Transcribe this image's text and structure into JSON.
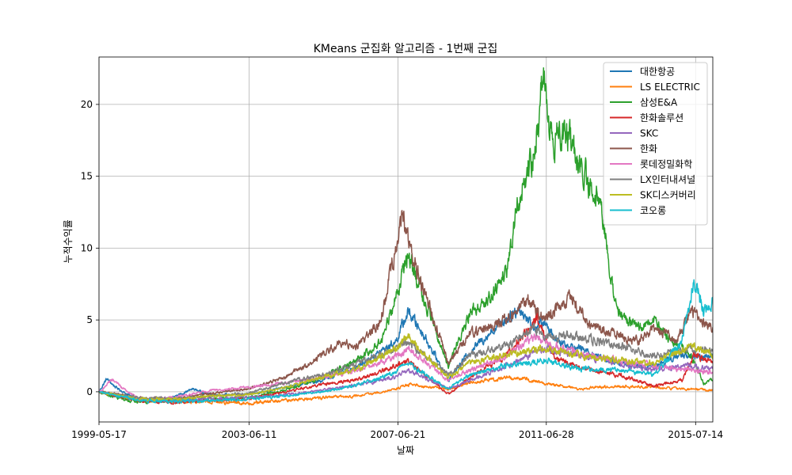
{
  "chart_data": {
    "type": "line",
    "title": "KMeans 군집화 알고리즘 - 1번째 군집",
    "xlabel": "날짜",
    "ylabel": "누적수익률",
    "x_range": [
      "1999-05-17",
      "2015-12-31"
    ],
    "ylim": [
      -2.1,
      23.3
    ],
    "x_ticks": [
      "1999-05-17",
      "2003-06-11",
      "2007-06-21",
      "2011-06-28",
      "2015-07-14"
    ],
    "y_ticks": [
      0,
      5,
      10,
      15,
      20
    ],
    "grid": true,
    "legend_position": "upper right",
    "series": [
      {
        "name": "대한항공",
        "color": "#1f77b4",
        "points": [
          [
            "1999-05-17",
            0
          ],
          [
            "1999-08-01",
            0.9
          ],
          [
            "1999-11-01",
            0.3
          ],
          [
            "2000-06-01",
            -0.6
          ],
          [
            "2001-03-01",
            -0.6
          ],
          [
            "2001-12-01",
            0.2
          ],
          [
            "2002-06-01",
            -0.2
          ],
          [
            "2003-06-01",
            -0.2
          ],
          [
            "2004-06-01",
            0.3
          ],
          [
            "2005-06-01",
            0.8
          ],
          [
            "2006-06-01",
            1.8
          ],
          [
            "2007-06-01",
            3.5
          ],
          [
            "2007-10-01",
            5.6
          ],
          [
            "2008-03-01",
            4.0
          ],
          [
            "2008-11-01",
            0.8
          ],
          [
            "2009-06-01",
            2.8
          ],
          [
            "2010-03-01",
            4.6
          ],
          [
            "2010-10-01",
            5.8
          ],
          [
            "2011-03-01",
            4.5
          ],
          [
            "2011-06-01",
            4.8
          ],
          [
            "2011-11-01",
            3.5
          ],
          [
            "2012-06-01",
            3.0
          ],
          [
            "2013-03-01",
            2.2
          ],
          [
            "2013-10-01",
            1.8
          ],
          [
            "2014-06-01",
            1.8
          ],
          [
            "2015-03-01",
            2.6
          ],
          [
            "2015-06-01",
            2.4
          ],
          [
            "2015-12-31",
            2.6
          ]
        ]
      },
      {
        "name": "LS ELECTRIC",
        "color": "#ff7f0e",
        "points": [
          [
            "1999-05-17",
            0
          ],
          [
            "2000-06-01",
            -0.6
          ],
          [
            "2001-06-01",
            -0.7
          ],
          [
            "2002-06-01",
            -0.7
          ],
          [
            "2003-06-01",
            -0.8
          ],
          [
            "2004-06-01",
            -0.6
          ],
          [
            "2005-06-01",
            -0.4
          ],
          [
            "2006-06-01",
            -0.3
          ],
          [
            "2007-06-01",
            0.2
          ],
          [
            "2007-10-01",
            0.5
          ],
          [
            "2008-11-01",
            0.2
          ],
          [
            "2009-06-01",
            0.6
          ],
          [
            "2010-06-01",
            1.0
          ],
          [
            "2010-12-01",
            0.9
          ],
          [
            "2011-06-01",
            0.6
          ],
          [
            "2012-06-01",
            0.2
          ],
          [
            "2013-06-01",
            0.4
          ],
          [
            "2014-06-01",
            0.3
          ],
          [
            "2015-06-01",
            0.2
          ],
          [
            "2015-12-31",
            0.1
          ]
        ]
      },
      {
        "name": "삼성E&A",
        "color": "#2ca02c",
        "points": [
          [
            "1999-05-17",
            0
          ],
          [
            "1999-09-01",
            -0.3
          ],
          [
            "2000-06-01",
            -0.7
          ],
          [
            "2001-06-01",
            -0.6
          ],
          [
            "2002-06-01",
            -0.5
          ],
          [
            "2003-06-01",
            -0.4
          ],
          [
            "2004-06-01",
            0.1
          ],
          [
            "2005-06-01",
            1.0
          ],
          [
            "2006-06-01",
            2.3
          ],
          [
            "2007-01-01",
            3.5
          ],
          [
            "2007-06-01",
            6.5
          ],
          [
            "2007-10-01",
            9.7
          ],
          [
            "2008-03-01",
            6.5
          ],
          [
            "2008-11-01",
            1.8
          ],
          [
            "2009-06-01",
            5.5
          ],
          [
            "2009-12-01",
            6.5
          ],
          [
            "2010-06-01",
            8.5
          ],
          [
            "2010-10-01",
            13.5
          ],
          [
            "2011-03-01",
            17.0
          ],
          [
            "2011-06-01",
            21.8
          ],
          [
            "2011-09-01",
            17.0
          ],
          [
            "2012-01-01",
            18.5
          ],
          [
            "2012-06-01",
            15.5
          ],
          [
            "2013-01-01",
            13.0
          ],
          [
            "2013-03-01",
            9.0
          ],
          [
            "2013-06-01",
            5.5
          ],
          [
            "2014-01-01",
            4.5
          ],
          [
            "2014-06-01",
            5.0
          ],
          [
            "2014-12-01",
            3.5
          ],
          [
            "2015-03-01",
            3.2
          ],
          [
            "2015-06-01",
            2.5
          ],
          [
            "2015-10-01",
            0.6
          ],
          [
            "2015-12-31",
            0.8
          ]
        ]
      },
      {
        "name": "한화솔루션",
        "color": "#d62728",
        "points": [
          [
            "1999-05-17",
            0
          ],
          [
            "2000-06-01",
            -0.6
          ],
          [
            "2001-06-01",
            -0.7
          ],
          [
            "2002-06-01",
            -0.6
          ],
          [
            "2003-06-01",
            -0.5
          ],
          [
            "2004-06-01",
            0.0
          ],
          [
            "2005-06-01",
            0.5
          ],
          [
            "2006-06-01",
            0.9
          ],
          [
            "2007-06-01",
            1.8
          ],
          [
            "2007-10-01",
            2.2
          ],
          [
            "2008-11-01",
            -0.2
          ],
          [
            "2009-06-01",
            1.0
          ],
          [
            "2010-06-01",
            2.5
          ],
          [
            "2011-04-01",
            5.2
          ],
          [
            "2011-09-01",
            2.5
          ],
          [
            "2012-06-01",
            1.6
          ],
          [
            "2013-06-01",
            1.2
          ],
          [
            "2014-06-01",
            0.4
          ],
          [
            "2015-03-01",
            0.8
          ],
          [
            "2015-07-01",
            2.6
          ],
          [
            "2015-12-31",
            2.0
          ]
        ]
      },
      {
        "name": "SKC",
        "color": "#9467bd",
        "points": [
          [
            "1999-05-17",
            0
          ],
          [
            "2000-06-01",
            -0.5
          ],
          [
            "2001-06-01",
            -0.6
          ],
          [
            "2002-06-01",
            -0.5
          ],
          [
            "2003-06-01",
            -0.4
          ],
          [
            "2004-06-01",
            -0.2
          ],
          [
            "2005-06-01",
            0.1
          ],
          [
            "2006-06-01",
            0.5
          ],
          [
            "2007-06-01",
            1.0
          ],
          [
            "2007-10-01",
            1.5
          ],
          [
            "2008-11-01",
            0.2
          ],
          [
            "2009-06-01",
            0.8
          ],
          [
            "2010-06-01",
            1.8
          ],
          [
            "2011-06-01",
            3.0
          ],
          [
            "2012-06-01",
            2.5
          ],
          [
            "2013-06-01",
            2.0
          ],
          [
            "2014-06-01",
            1.5
          ],
          [
            "2015-06-01",
            1.8
          ],
          [
            "2015-12-31",
            1.6
          ]
        ]
      },
      {
        "name": "한화",
        "color": "#8c564b",
        "points": [
          [
            "1999-05-17",
            0
          ],
          [
            "2000-06-01",
            -0.4
          ],
          [
            "2001-06-01",
            -0.5
          ],
          [
            "2002-06-01",
            -0.1
          ],
          [
            "2003-06-01",
            0.2
          ],
          [
            "2004-06-01",
            1.0
          ],
          [
            "2005-06-01",
            2.5
          ],
          [
            "2005-12-01",
            3.5
          ],
          [
            "2006-06-01",
            3.2
          ],
          [
            "2007-01-01",
            5.0
          ],
          [
            "2007-06-01",
            10.0
          ],
          [
            "2007-08-01",
            12.1
          ],
          [
            "2008-03-01",
            7.0
          ],
          [
            "2008-11-01",
            2.0
          ],
          [
            "2009-06-01",
            4.0
          ],
          [
            "2010-06-01",
            5.0
          ],
          [
            "2011-01-01",
            6.5
          ],
          [
            "2011-06-01",
            5.0
          ],
          [
            "2012-03-01",
            6.5
          ],
          [
            "2012-09-01",
            4.5
          ],
          [
            "2013-06-01",
            4.0
          ],
          [
            "2014-01-01",
            3.5
          ],
          [
            "2014-06-01",
            4.5
          ],
          [
            "2015-01-01",
            3.5
          ],
          [
            "2015-06-01",
            5.5
          ],
          [
            "2015-12-31",
            4.5
          ]
        ]
      },
      {
        "name": "롯데정밀화학",
        "color": "#e377c2",
        "points": [
          [
            "1999-05-17",
            0
          ],
          [
            "1999-10-01",
            0.8
          ],
          [
            "2000-06-01",
            -0.5
          ],
          [
            "2001-06-01",
            -0.4
          ],
          [
            "2002-06-01",
            0.1
          ],
          [
            "2003-06-01",
            0.3
          ],
          [
            "2004-06-01",
            0.6
          ],
          [
            "2005-06-01",
            1.0
          ],
          [
            "2006-06-01",
            1.5
          ],
          [
            "2007-06-01",
            2.5
          ],
          [
            "2007-10-01",
            3.0
          ],
          [
            "2008-11-01",
            0.8
          ],
          [
            "2009-06-01",
            1.5
          ],
          [
            "2010-06-01",
            2.5
          ],
          [
            "2011-03-01",
            3.8
          ],
          [
            "2011-06-01",
            3.5
          ],
          [
            "2012-06-01",
            2.6
          ],
          [
            "2013-06-01",
            2.2
          ],
          [
            "2014-06-01",
            1.8
          ],
          [
            "2015-06-01",
            1.5
          ],
          [
            "2015-12-31",
            1.3
          ]
        ]
      },
      {
        "name": "LX인터내셔널",
        "color": "#7f7f7f",
        "points": [
          [
            "1999-05-17",
            0
          ],
          [
            "2000-06-01",
            -0.4
          ],
          [
            "2001-06-01",
            -0.5
          ],
          [
            "2002-06-01",
            -0.3
          ],
          [
            "2003-06-01",
            -0.1
          ],
          [
            "2004-06-01",
            0.6
          ],
          [
            "2005-06-01",
            1.2
          ],
          [
            "2006-06-01",
            2.0
          ],
          [
            "2007-06-01",
            3.0
          ],
          [
            "2007-10-01",
            3.5
          ],
          [
            "2008-11-01",
            1.2
          ],
          [
            "2009-06-01",
            2.5
          ],
          [
            "2010-06-01",
            3.2
          ],
          [
            "2011-03-01",
            4.5
          ],
          [
            "2011-06-01",
            4.0
          ],
          [
            "2012-06-01",
            3.8
          ],
          [
            "2013-06-01",
            3.2
          ],
          [
            "2014-06-01",
            2.5
          ],
          [
            "2015-06-01",
            3.0
          ],
          [
            "2015-12-31",
            2.8
          ]
        ]
      },
      {
        "name": "SK디스커버리",
        "color": "#bcbd22",
        "points": [
          [
            "1999-05-17",
            0
          ],
          [
            "2000-06-01",
            -0.5
          ],
          [
            "2001-06-01",
            -0.5
          ],
          [
            "2002-06-01",
            -0.3
          ],
          [
            "2003-06-01",
            -0.2
          ],
          [
            "2004-06-01",
            0.3
          ],
          [
            "2005-06-01",
            1.0
          ],
          [
            "2006-06-01",
            1.6
          ],
          [
            "2007-06-01",
            3.0
          ],
          [
            "2007-10-01",
            3.8
          ],
          [
            "2008-11-01",
            1.0
          ],
          [
            "2009-06-01",
            2.0
          ],
          [
            "2010-06-01",
            2.6
          ],
          [
            "2011-06-01",
            3.0
          ],
          [
            "2012-06-01",
            2.5
          ],
          [
            "2013-06-01",
            2.2
          ],
          [
            "2014-06-01",
            2.0
          ],
          [
            "2015-06-01",
            3.2
          ],
          [
            "2015-12-31",
            2.6
          ]
        ]
      },
      {
        "name": "코오롱",
        "color": "#17becf",
        "points": [
          [
            "1999-05-17",
            0
          ],
          [
            "2000-06-01",
            -0.6
          ],
          [
            "2001-06-01",
            -0.7
          ],
          [
            "2002-06-01",
            -0.6
          ],
          [
            "2003-06-01",
            -0.5
          ],
          [
            "2004-06-01",
            -0.3
          ],
          [
            "2005-06-01",
            0.0
          ],
          [
            "2006-06-01",
            0.5
          ],
          [
            "2007-06-01",
            1.4
          ],
          [
            "2007-10-01",
            2.0
          ],
          [
            "2008-11-01",
            0.2
          ],
          [
            "2009-06-01",
            1.2
          ],
          [
            "2010-06-01",
            1.8
          ],
          [
            "2011-06-01",
            2.2
          ],
          [
            "2012-06-01",
            1.6
          ],
          [
            "2013-06-01",
            1.5
          ],
          [
            "2014-06-01",
            1.2
          ],
          [
            "2015-03-01",
            3.5
          ],
          [
            "2015-07-01",
            7.8
          ],
          [
            "2015-10-01",
            5.5
          ],
          [
            "2015-12-31",
            6.6
          ]
        ]
      }
    ]
  }
}
